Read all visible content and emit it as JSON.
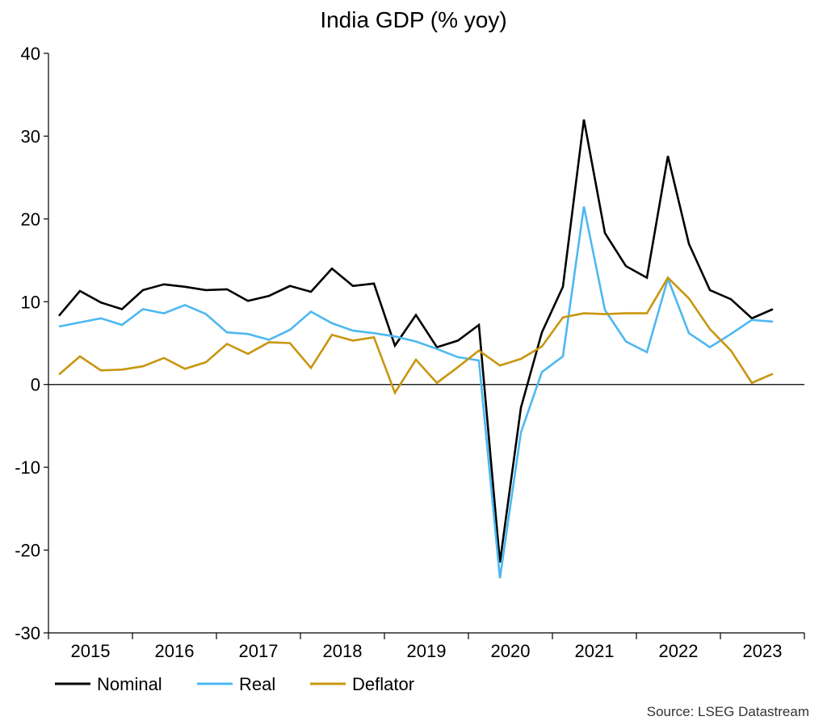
{
  "chart_data": {
    "type": "line",
    "title": "India GDP (% yoy)",
    "xlabel": "",
    "ylabel": "",
    "ylim": [
      -30,
      40
    ],
    "yticks": [
      -30,
      -20,
      -10,
      0,
      10,
      20,
      30,
      40
    ],
    "year_labels": [
      "2015",
      "2016",
      "2017",
      "2018",
      "2019",
      "2020",
      "2021",
      "2022",
      "2023"
    ],
    "x": [
      "2015-Q1",
      "2015-Q2",
      "2015-Q3",
      "2015-Q4",
      "2016-Q1",
      "2016-Q2",
      "2016-Q3",
      "2016-Q4",
      "2017-Q1",
      "2017-Q2",
      "2017-Q3",
      "2017-Q4",
      "2018-Q1",
      "2018-Q2",
      "2018-Q3",
      "2018-Q4",
      "2019-Q1",
      "2019-Q2",
      "2019-Q3",
      "2019-Q4",
      "2020-Q1",
      "2020-Q2",
      "2020-Q3",
      "2020-Q4",
      "2021-Q1",
      "2021-Q2",
      "2021-Q3",
      "2021-Q4",
      "2022-Q1",
      "2022-Q2",
      "2022-Q3",
      "2022-Q4",
      "2023-Q1",
      "2023-Q2",
      "2023-Q3"
    ],
    "grid": false,
    "legend_position": "bottom-left",
    "series": [
      {
        "name": "Nominal",
        "color": "#000000",
        "values": [
          8.3,
          11.3,
          9.9,
          9.1,
          11.4,
          12.1,
          11.8,
          11.4,
          11.5,
          10.1,
          10.7,
          11.9,
          11.2,
          14.0,
          11.9,
          12.2,
          4.7,
          8.4,
          4.5,
          5.3,
          7.2,
          -21.5,
          -2.8,
          6.3,
          11.8,
          32.0,
          18.3,
          14.3,
          12.9,
          27.6,
          17.0,
          11.4,
          10.3,
          8.0,
          9.1
        ]
      },
      {
        "name": "Real",
        "color": "#4db8f0",
        "values": [
          7.0,
          7.5,
          8.0,
          7.2,
          9.1,
          8.6,
          9.6,
          8.5,
          6.3,
          6.1,
          5.4,
          6.6,
          8.8,
          7.4,
          6.5,
          6.2,
          5.8,
          5.2,
          4.3,
          3.3,
          2.9,
          -23.4,
          -5.8,
          1.5,
          3.4,
          21.5,
          9.0,
          5.2,
          3.9,
          12.8,
          6.2,
          4.5,
          6.1,
          7.8,
          7.6
        ]
      },
      {
        "name": "Deflator",
        "color": "#c8960f",
        "values": [
          1.2,
          3.4,
          1.7,
          1.8,
          2.2,
          3.2,
          1.9,
          2.7,
          4.9,
          3.7,
          5.1,
          5.0,
          2.0,
          6.0,
          5.3,
          5.7,
          -1.0,
          3.0,
          0.2,
          2.1,
          4.1,
          2.3,
          3.1,
          4.6,
          8.1,
          8.6,
          8.5,
          8.6,
          8.6,
          12.9,
          10.4,
          6.7,
          4.1,
          0.2,
          1.3
        ]
      }
    ],
    "source": "Source: LSEG Datastream"
  }
}
